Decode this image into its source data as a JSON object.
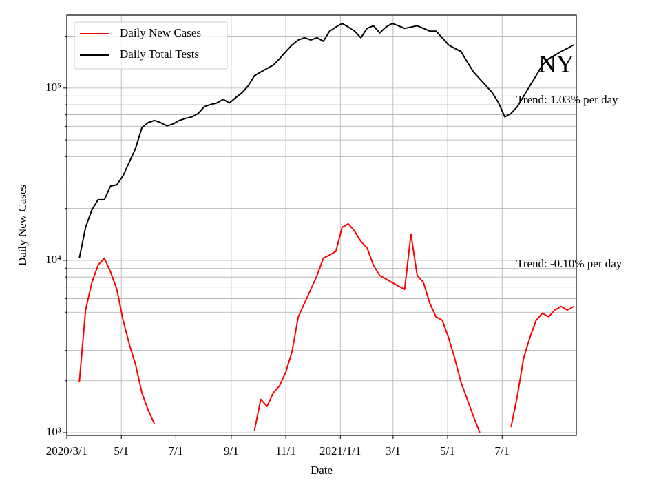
{
  "chart_data": {
    "type": "line",
    "x": [
      "2020-03-15",
      "2020-03-22",
      "2020-03-29",
      "2020-04-05",
      "2020-04-12",
      "2020-04-19",
      "2020-04-26",
      "2020-05-03",
      "2020-05-10",
      "2020-05-17",
      "2020-05-24",
      "2020-05-31",
      "2020-06-07",
      "2020-06-14",
      "2020-06-21",
      "2020-06-28",
      "2020-07-05",
      "2020-07-12",
      "2020-07-19",
      "2020-07-26",
      "2020-08-02",
      "2020-08-09",
      "2020-08-16",
      "2020-08-23",
      "2020-08-30",
      "2020-09-06",
      "2020-09-13",
      "2020-09-20",
      "2020-09-27",
      "2020-10-04",
      "2020-10-11",
      "2020-10-18",
      "2020-10-25",
      "2020-11-01",
      "2020-11-08",
      "2020-11-15",
      "2020-11-22",
      "2020-11-29",
      "2020-12-06",
      "2020-12-13",
      "2020-12-20",
      "2020-12-27",
      "2021-01-03",
      "2021-01-10",
      "2021-01-17",
      "2021-01-24",
      "2021-01-31",
      "2021-02-07",
      "2021-02-14",
      "2021-02-21",
      "2021-02-28",
      "2021-03-07",
      "2021-03-14",
      "2021-03-21",
      "2021-03-28",
      "2021-04-04",
      "2021-04-11",
      "2021-04-18",
      "2021-04-25",
      "2021-05-02",
      "2021-05-09",
      "2021-05-16",
      "2021-05-23",
      "2021-05-30",
      "2021-06-06",
      "2021-06-13",
      "2021-06-20",
      "2021-06-27",
      "2021-07-04",
      "2021-07-11",
      "2021-07-18",
      "2021-07-25",
      "2021-08-01",
      "2021-08-08",
      "2021-08-15",
      "2021-08-22",
      "2021-08-29",
      "2021-09-05",
      "2021-09-12",
      "2021-09-19"
    ],
    "series": [
      {
        "name": "Daily New Cases",
        "color": "#ff0000",
        "values": [
          1960,
          5150,
          7430,
          9380,
          10300,
          8550,
          6790,
          4490,
          3250,
          2470,
          1700,
          1355,
          1127,
          null,
          null,
          null,
          null,
          null,
          null,
          null,
          null,
          null,
          null,
          null,
          null,
          null,
          null,
          null,
          1030,
          1560,
          1420,
          1700,
          1870,
          2250,
          2960,
          4700,
          5650,
          6790,
          8170,
          10300,
          10750,
          11270,
          15560,
          16300,
          14800,
          12900,
          11800,
          9380,
          8170,
          7800,
          7430,
          7100,
          6790,
          14200,
          8170,
          7430,
          5650,
          4700,
          4490,
          3560,
          2700,
          1960,
          1560,
          1240,
          1000,
          null,
          null,
          null,
          null,
          1076,
          1630,
          2700,
          3560,
          4490,
          4930,
          4700,
          5150,
          5400,
          5150,
          5400
        ]
      },
      {
        "name": "Daily Total Tests",
        "color": "#000000",
        "values": [
          10280,
          15560,
          19600,
          22500,
          22500,
          27000,
          27500,
          31000,
          37300,
          44800,
          59000,
          63000,
          64900,
          63000,
          60300,
          62000,
          64900,
          66700,
          68000,
          71200,
          78000,
          80300,
          82000,
          86000,
          82000,
          88000,
          94000,
          103000,
          118000,
          124000,
          130000,
          136000,
          148000,
          163000,
          178000,
          190000,
          196000,
          190000,
          196000,
          187000,
          214000,
          226000,
          237000,
          226000,
          214000,
          196000,
          222000,
          230000,
          209000,
          226000,
          237000,
          230000,
          222000,
          226000,
          230000,
          222000,
          214000,
          214000,
          196000,
          178000,
          170000,
          163000,
          142000,
          124000,
          113000,
          103000,
          94000,
          82000,
          68000,
          71200,
          78000,
          89500,
          103000,
          118000,
          136000,
          148000,
          155000,
          163000,
          170000,
          178000
        ]
      }
    ],
    "xlabel": "Date",
    "ylabel": "Daily New Cases",
    "xlim": [
      "2020-03-01",
      "2021-09-22"
    ],
    "xticks": [
      {
        "value": "2020-03-01",
        "label": "2020/3/1"
      },
      {
        "value": "2020-05-01",
        "label": "5/1"
      },
      {
        "value": "2020-07-01",
        "label": "7/1"
      },
      {
        "value": "2020-09-01",
        "label": "9/1"
      },
      {
        "value": "2020-11-01",
        "label": "11/1"
      },
      {
        "value": "2021-01-01",
        "label": "2021/1/1"
      },
      {
        "value": "2021-03-01",
        "label": "3/1"
      },
      {
        "value": "2021-05-01",
        "label": "5/1"
      },
      {
        "value": "2021-07-01",
        "label": "7/1"
      }
    ],
    "ylim": [
      964,
      265000
    ],
    "log_y": true,
    "yticks": [
      {
        "value": 1000,
        "label": "10³"
      },
      {
        "value": 10000,
        "label": "10⁴"
      },
      {
        "value": 100000,
        "label": "10⁵"
      }
    ],
    "y_minor_ticks": [
      2000,
      3000,
      4000,
      5000,
      6000,
      7000,
      8000,
      9000,
      20000,
      30000,
      40000,
      50000,
      60000,
      70000,
      80000,
      90000,
      200000
    ],
    "grid": true,
    "legend": "upper left",
    "annotations": [
      "NY",
      "Trend: 1.03% per day",
      "Trend: -0.10% per day"
    ]
  }
}
